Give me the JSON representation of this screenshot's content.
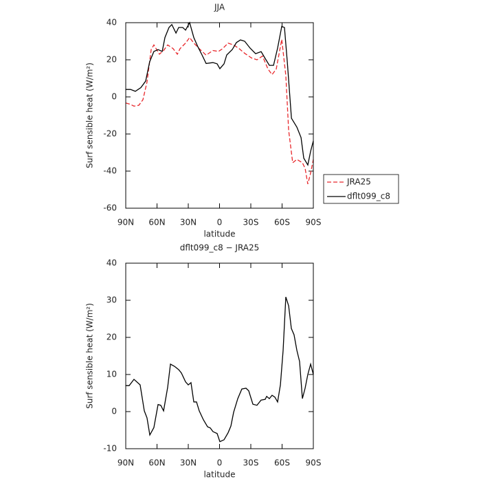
{
  "chart_data": [
    {
      "type": "line",
      "title": "JJA",
      "xlabel": "latitude",
      "ylabel": "Surf sensible heat (W/m²)",
      "xlim": [
        90,
        -90
      ],
      "xticks": [
        {
          "value": 90,
          "label": "90N"
        },
        {
          "value": 60,
          "label": "60N"
        },
        {
          "value": 30,
          "label": "30N"
        },
        0,
        {
          "value": -30,
          "label": "30S"
        },
        {
          "value": -60,
          "label": "60S"
        },
        {
          "value": -90,
          "label": "90S"
        }
      ],
      "ylim": [
        -60,
        40
      ],
      "yticks": [
        -60,
        -40,
        -20,
        0,
        20,
        40
      ],
      "legend": "outside right",
      "series": [
        {
          "name": "JRA25",
          "color": "#e8262a",
          "line_style": "dashed",
          "x": [
            90,
            85.4,
            82.1,
            77.4,
            73.5,
            69.6,
            65.6,
            63,
            57.7,
            53.7,
            49.8,
            44.5,
            40.5,
            37.9,
            32.6,
            28.7,
            24.7,
            19.5,
            12.9,
            6.3,
            1,
            -3,
            -8.2,
            -13.5,
            -18.8,
            -24.1,
            -30.6,
            -35.9,
            -41.2,
            -46.5,
            -50.4,
            -54.4,
            -59.7,
            -63.6,
            -66.3,
            -70.2,
            -74.2,
            -79.5,
            -82.1,
            -84.7,
            -87.4,
            -90
          ],
          "values": [
            -3.3,
            -4,
            -5,
            -4.5,
            -1.5,
            8,
            25.5,
            28,
            23,
            25,
            28,
            26,
            23,
            26,
            29,
            32,
            29,
            26,
            22.5,
            25,
            24.5,
            26,
            29,
            28,
            26,
            23.5,
            21,
            20,
            22,
            15,
            12,
            15,
            31,
            11.5,
            -18,
            -35.5,
            -33.7,
            -35.5,
            -38.5,
            -47,
            -41,
            -33.7
          ]
        },
        {
          "name": "dflt099_c8",
          "color": "#000000",
          "line_style": "solid",
          "x": [
            90,
            85.4,
            80.8,
            75.5,
            70.9,
            67,
            63,
            59,
            55,
            52.4,
            48.5,
            45.8,
            41.8,
            39.2,
            35.3,
            32.6,
            28.7,
            24.7,
            20.8,
            16.8,
            12.9,
            6.3,
            2.3,
            -0.3,
            -4.3,
            -6.9,
            -12.2,
            -16.2,
            -20.1,
            -24.1,
            -29.3,
            -34.6,
            -39.9,
            -43.8,
            -47.8,
            -51.8,
            -55.7,
            -59.7,
            -62.3,
            -65,
            -69,
            -74.2,
            -78.2,
            -80.8,
            -84.7,
            -87.4,
            -90
          ],
          "values": [
            4,
            4,
            3,
            5,
            8.5,
            19,
            24.5,
            25.5,
            24.5,
            32,
            37.4,
            39,
            34.4,
            37.4,
            37.4,
            36,
            40,
            32,
            27,
            22.6,
            18,
            18.5,
            17.8,
            15.2,
            17.8,
            22.6,
            25.5,
            29.3,
            30.7,
            30,
            26.3,
            23.3,
            24.4,
            20.7,
            17,
            17,
            26.3,
            38,
            37.4,
            19,
            -11.5,
            -16.3,
            -21.9,
            -33,
            -36.7,
            -29.3,
            -23.7
          ]
        }
      ]
    },
    {
      "type": "line",
      "title": "dflt099_c8 − JRA25",
      "xlabel": "latitude",
      "ylabel": "Surf sensible heat (W/m²)",
      "xlim": [
        90,
        -90
      ],
      "xticks": [
        {
          "value": 90,
          "label": "90N"
        },
        {
          "value": 60,
          "label": "60N"
        },
        {
          "value": 30,
          "label": "30N"
        },
        0,
        {
          "value": -30,
          "label": "30S"
        },
        {
          "value": -60,
          "label": "60S"
        },
        {
          "value": -90,
          "label": "90S"
        }
      ],
      "ylim": [
        -10,
        40
      ],
      "yticks": [
        -10,
        0,
        10,
        20,
        30,
        40
      ],
      "color": "#000000",
      "x": [
        90,
        86.7,
        82.1,
        76.2,
        72.2,
        69.6,
        66.9,
        63,
        59,
        56.4,
        53.7,
        49.8,
        47.1,
        43.2,
        39.2,
        36.6,
        32.6,
        30,
        27.4,
        24.7,
        22.1,
        19.5,
        15.5,
        11.5,
        8.9,
        6.3,
        2.3,
        -0.3,
        -4.3,
        -8.2,
        -10.9,
        -13.5,
        -17.5,
        -21.4,
        -25.4,
        -28,
        -32,
        -35.9,
        -39.9,
        -43.8,
        -45.2,
        -47.8,
        -50.4,
        -53.1,
        -55.7,
        -58.4,
        -61,
        -63.6,
        -66.3,
        -68.9,
        -71.5,
        -74.2,
        -76.8,
        -79.5,
        -82.1,
        -84.7,
        -87.4,
        -90
      ],
      "values": [
        7,
        7,
        8.7,
        7.2,
        0.2,
        -1.7,
        -6.3,
        -4.3,
        1.9,
        1.7,
        0.2,
        6.5,
        12.8,
        12.2,
        11.3,
        10.4,
        8,
        7.2,
        7.8,
        2.6,
        2.6,
        0.2,
        -2.2,
        -4.1,
        -4.4,
        -5.4,
        -5.9,
        -8.1,
        -7.6,
        -5.7,
        -3.9,
        -0.2,
        3.5,
        6.1,
        6.3,
        5.6,
        2,
        1.7,
        3.1,
        3.3,
        4.1,
        3.5,
        4.4,
        3.9,
        2.6,
        7.2,
        16.5,
        30.9,
        28.5,
        22.4,
        20.7,
        16.5,
        13.5,
        3.5,
        6.3,
        10,
        12.8,
        10
      ]
    }
  ]
}
